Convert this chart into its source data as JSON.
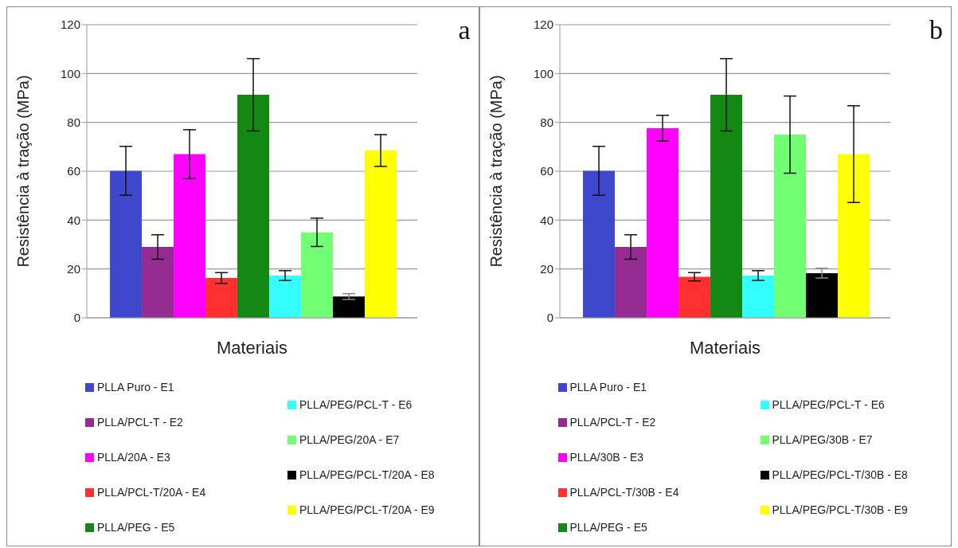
{
  "chart_data": [
    {
      "type": "bar",
      "annotations": [
        "a"
      ],
      "xlabel": "Materiais",
      "ylabel": "Resistência à tração (MPa)",
      "categories": [
        null
      ],
      "ylim": [
        0,
        120
      ],
      "yticks": [
        0,
        20,
        40,
        60,
        80,
        100,
        120
      ],
      "grid": "y",
      "legend": "bottom",
      "series": [
        {
          "name": "PLLA Puro - E1",
          "color": "#3f48cc",
          "values": [
            60.2
          ],
          "errors": [
            10
          ]
        },
        {
          "name": "PLLA/PCL-T - E2",
          "color": "#952c91",
          "values": [
            29
          ],
          "errors": [
            5
          ]
        },
        {
          "name": "PLLA/20A - E3",
          "color": "#ff00ff",
          "values": [
            67
          ],
          "errors": [
            10
          ]
        },
        {
          "name": "PLLA/PCL-T/20A - E4",
          "color": "#ff3030",
          "values": [
            16.3
          ],
          "errors": [
            2.2
          ]
        },
        {
          "name": "PLLA/PEG - E5",
          "color": "#138913",
          "values": [
            91.3
          ],
          "errors": [
            14.8
          ]
        },
        {
          "name": "PLLA/PEG/PCL-T - E6",
          "color": "#33ffff",
          "values": [
            17.3
          ],
          "errors": [
            2
          ]
        },
        {
          "name": "PLLA/PEG/20A - E7",
          "color": "#73ff73",
          "values": [
            35
          ],
          "errors": [
            5.8
          ]
        },
        {
          "name": "PLLA/PEG/PCL-T/20A - E8",
          "color": "#000000",
          "values": [
            8.7
          ],
          "errors": [
            1.2
          ]
        },
        {
          "name": "PLLA/PEG/PCL-T/20A - E9",
          "color": "#ffff00",
          "values": [
            68.5
          ],
          "errors": [
            6.5
          ]
        }
      ]
    },
    {
      "type": "bar",
      "annotations": [
        "b"
      ],
      "xlabel": "Materiais",
      "ylabel": "Resistência à tração (MPa)",
      "categories": [
        null
      ],
      "ylim": [
        0,
        120
      ],
      "yticks": [
        0,
        20,
        40,
        60,
        80,
        100,
        120
      ],
      "grid": "y",
      "legend": "bottom",
      "series": [
        {
          "name": "PLLA Puro - E1",
          "color": "#3f48cc",
          "values": [
            60.2
          ],
          "errors": [
            10
          ]
        },
        {
          "name": "PLLA/PCL-T - E2",
          "color": "#952c91",
          "values": [
            29
          ],
          "errors": [
            5
          ]
        },
        {
          "name": "PLLA/30B - E3",
          "color": "#ff00ff",
          "values": [
            77.6
          ],
          "errors": [
            5.3
          ]
        },
        {
          "name": "PLLA/PCL-T/30B - E4",
          "color": "#ff3030",
          "values": [
            16.8
          ],
          "errors": [
            1.7
          ]
        },
        {
          "name": "PLLA/PEG - E5",
          "color": "#138913",
          "values": [
            91.3
          ],
          "errors": [
            14.8
          ]
        },
        {
          "name": "PLLA/PEG/PCL-T - E6",
          "color": "#33ffff",
          "values": [
            17.3
          ],
          "errors": [
            2
          ]
        },
        {
          "name": "PLLA/PEG/30B - E7",
          "color": "#73ff73",
          "values": [
            75
          ],
          "errors": [
            15.8
          ]
        },
        {
          "name": "PLLA/PEG/PCL-T/30B - E8",
          "color": "#000000",
          "values": [
            18.3
          ],
          "errors": [
            2
          ]
        },
        {
          "name": "PLLA/PEG/PCL-T/30B - E9",
          "color": "#ffff00",
          "values": [
            67
          ],
          "errors": [
            19.8
          ]
        }
      ]
    }
  ]
}
